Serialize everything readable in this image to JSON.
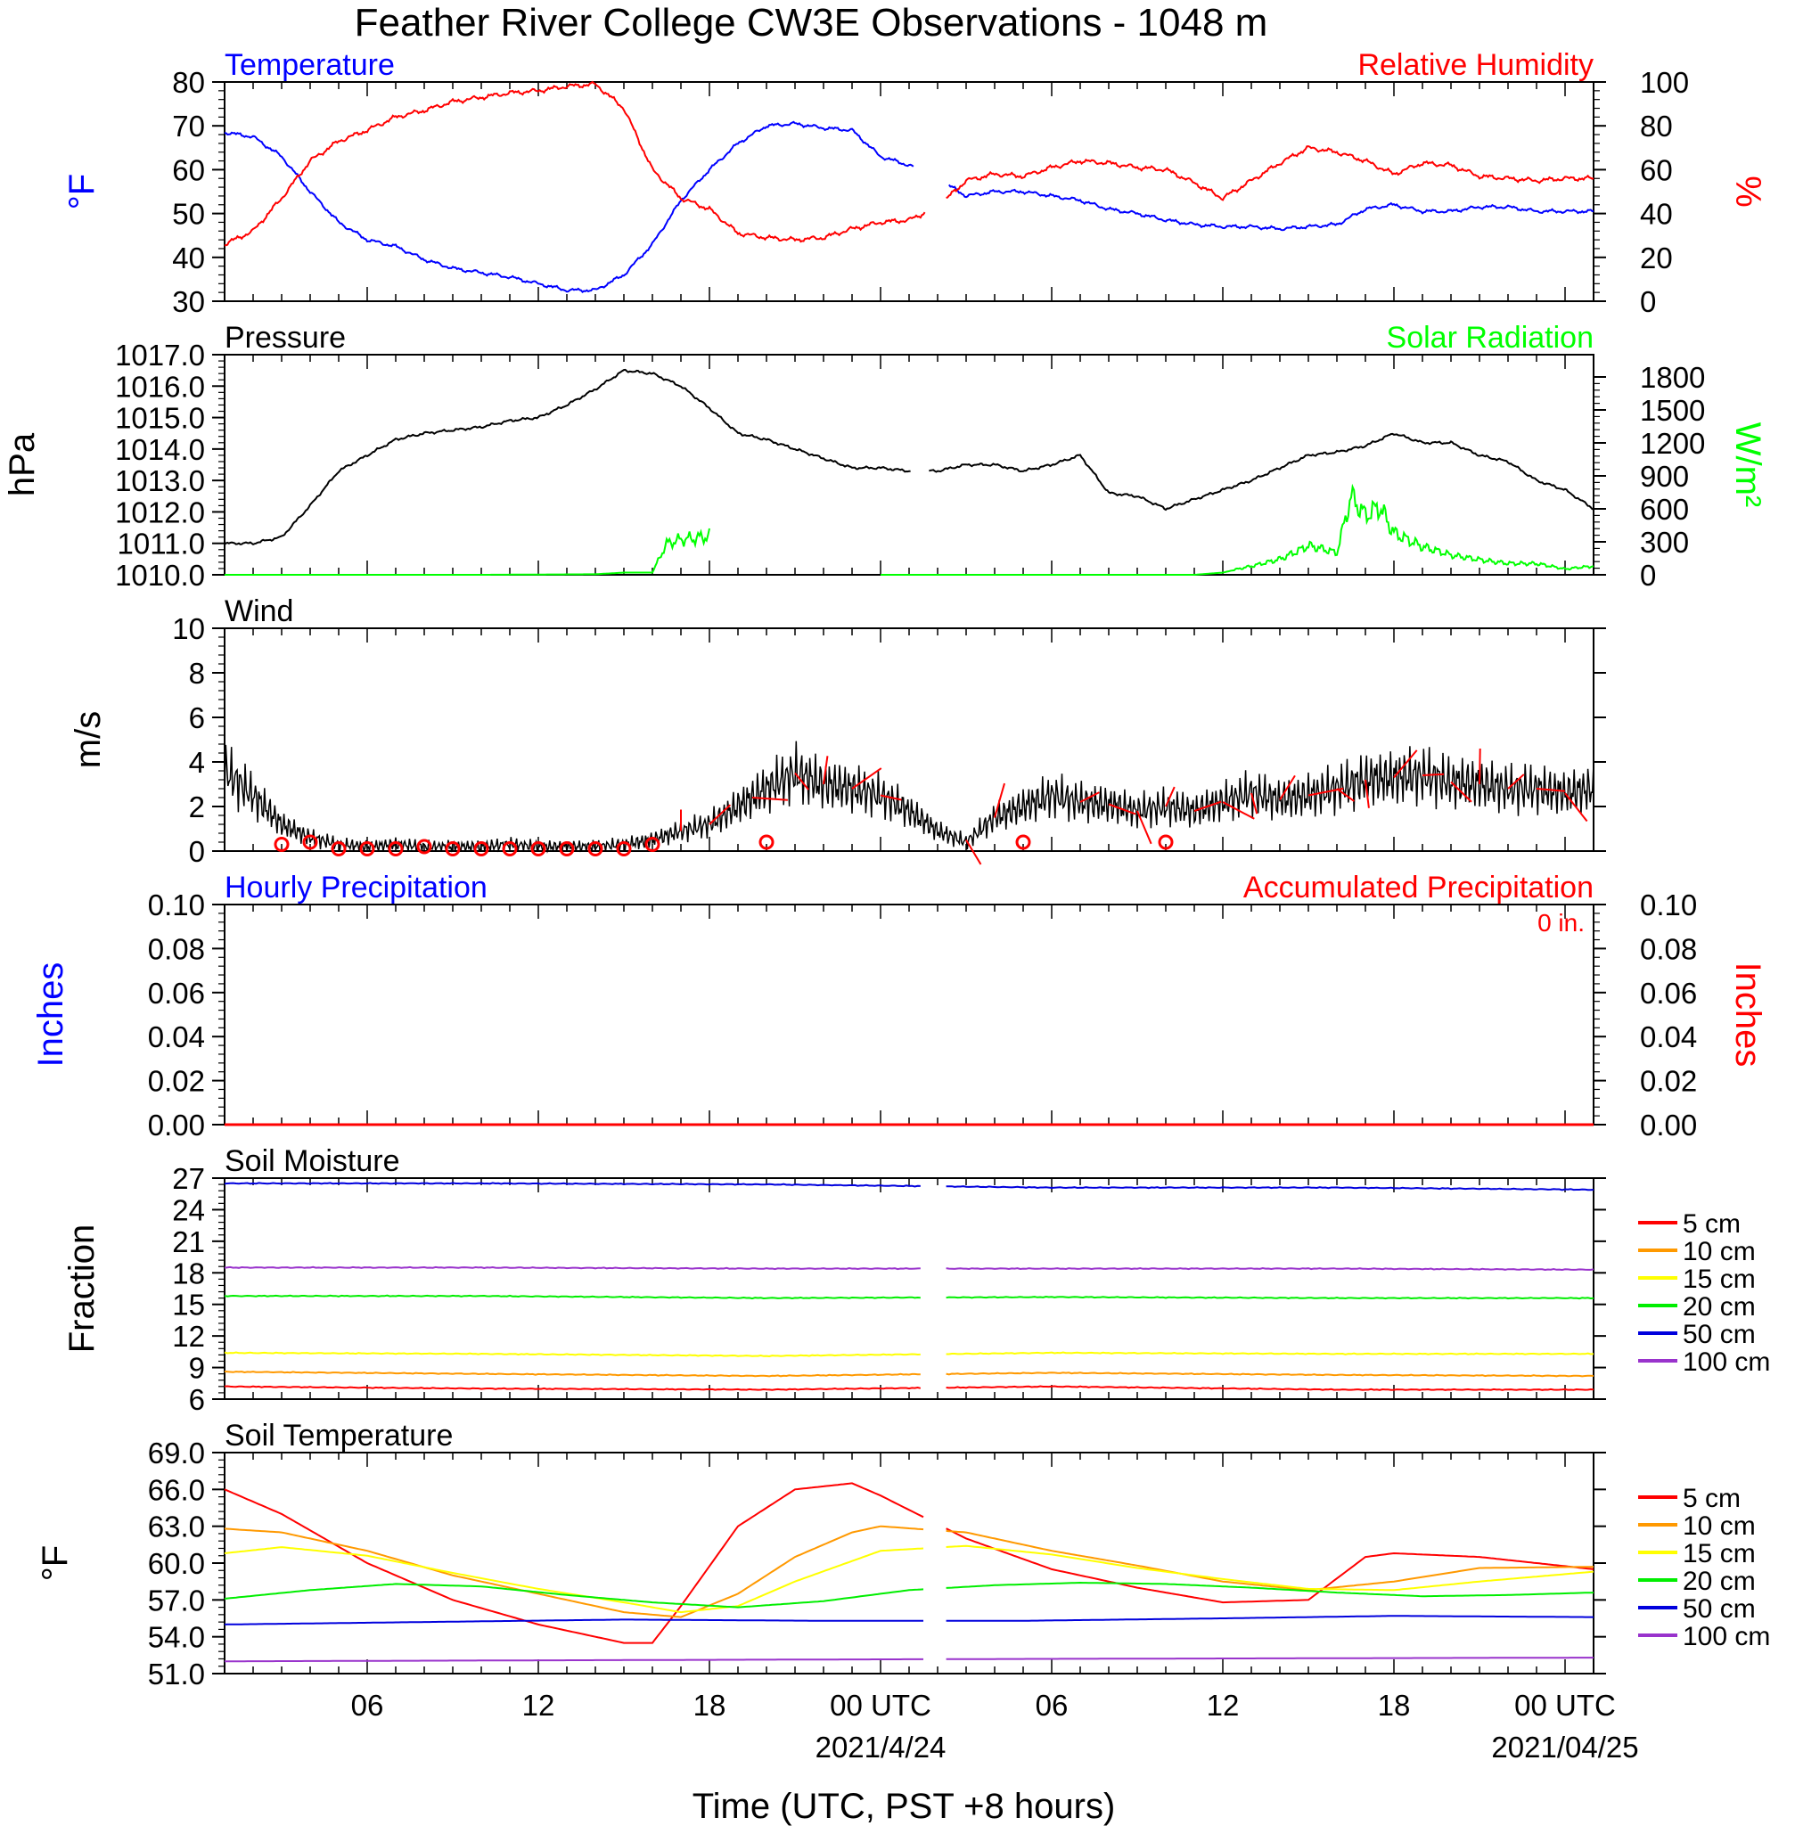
{
  "title": "Feather River College CW3E Observations - 1048 m",
  "x_axis": {
    "label": "Time (UTC, PST +8 hours)",
    "tick_labels": [
      "06",
      "12",
      "18",
      "00 UTC",
      "06",
      "12",
      "18",
      "00 UTC"
    ],
    "date_labels": [
      "2021/4/24",
      "2021/04/25"
    ],
    "hour_range": [
      1,
      49
    ]
  },
  "colors": {
    "temperature": "#0000ff",
    "humidity": "#ff0000",
    "pressure": "#000000",
    "solar": "#00ff00",
    "wind": "#000000",
    "wind_barb": "#ff0000",
    "precip_hourly": "#0000ff",
    "precip_accum": "#ff0000",
    "d5": "#ff0000",
    "d10": "#ff9900",
    "d15": "#ffff00",
    "d20": "#00ee00",
    "d50": "#0000dd",
    "d100": "#9933cc"
  },
  "panels": {
    "temperature": {
      "left_title": "Temperature",
      "right_title": "Relative Humidity",
      "left_unit": "°F",
      "right_unit": "%",
      "left_ticks": [
        "80",
        "70",
        "60",
        "50",
        "40",
        "30"
      ],
      "right_ticks": [
        "100",
        "80",
        "60",
        "40",
        "20",
        "0"
      ]
    },
    "pressure": {
      "left_title": "Pressure",
      "right_title": "Solar Radiation",
      "left_unit": "hPa",
      "right_unit": "W/m²",
      "left_ticks": [
        "1017.0",
        "1016.0",
        "1015.0",
        "1014.0",
        "1013.0",
        "1012.0",
        "1011.0",
        "1010.0"
      ],
      "right_ticks": [
        "1800",
        "1500",
        "1200",
        "900",
        "600",
        "300",
        "0"
      ]
    },
    "wind": {
      "left_title": "Wind",
      "left_unit": "m/s",
      "left_ticks": [
        "10",
        "8",
        "6",
        "4",
        "2",
        "0"
      ]
    },
    "precip": {
      "left_title": "Hourly Precipitation",
      "right_title": "Accumulated Precipitation",
      "accum_text": "0 in.",
      "left_unit": "Inches",
      "right_unit": "Inches",
      "left_ticks": [
        "0.10",
        "0.08",
        "0.06",
        "0.04",
        "0.02",
        "0.00"
      ],
      "right_ticks": [
        "0.10",
        "0.08",
        "0.06",
        "0.04",
        "0.02",
        "0.00"
      ]
    },
    "soil_moisture": {
      "left_title": "Soil Moisture",
      "left_unit": "Fraction",
      "left_ticks": [
        "27",
        "24",
        "21",
        "18",
        "15",
        "12",
        "9",
        "6"
      ]
    },
    "soil_temperature": {
      "left_title": "Soil Temperature",
      "left_unit": "°F",
      "left_ticks": [
        "69.0",
        "66.0",
        "63.0",
        "60.0",
        "57.0",
        "54.0",
        "51.0"
      ]
    }
  },
  "legend": {
    "items": [
      {
        "label": "5 cm",
        "color": "#ff0000"
      },
      {
        "label": "10 cm",
        "color": "#ff9900"
      },
      {
        "label": "15 cm",
        "color": "#ffff00"
      },
      {
        "label": "20 cm",
        "color": "#00ee00"
      },
      {
        "label": "50 cm",
        "color": "#0000dd"
      },
      {
        "label": "100 cm",
        "color": "#9933cc"
      }
    ]
  },
  "chart_data": [
    {
      "type": "line",
      "title": "Temperature / Relative Humidity",
      "x_unit": "hours since 2021-04-23 00 UTC",
      "ylim_left": [
        30,
        80
      ],
      "ylim_right": [
        0,
        100
      ],
      "series": [
        {
          "name": "Temperature",
          "axis": "left",
          "x": [
            1,
            2,
            3,
            4,
            5,
            6,
            7,
            8,
            9,
            10,
            11,
            12,
            13,
            14,
            15,
            16,
            17,
            18,
            19,
            20,
            21,
            22,
            23,
            24,
            25,
            26,
            27,
            28,
            29,
            30,
            31,
            32,
            33,
            34,
            35,
            36,
            37,
            38,
            39,
            40,
            41,
            42,
            43,
            44,
            45,
            46,
            47,
            48,
            49
          ],
          "values": [
            68.5,
            67.5,
            63,
            55,
            48,
            44,
            42.5,
            39.5,
            37.5,
            36.5,
            35.5,
            34,
            32.5,
            32.5,
            36,
            43,
            53,
            60,
            66,
            70,
            70.5,
            69.5,
            69,
            63,
            61,
            58,
            54,
            55,
            55,
            54,
            53,
            51,
            50,
            48.5,
            47.5,
            47,
            47,
            46.5,
            47,
            47.5,
            51,
            52,
            50.5,
            50.5,
            51.5,
            51.5,
            50.5,
            50.5,
            50.5
          ]
        },
        {
          "name": "Relative Humidity",
          "axis": "right",
          "x": [
            1,
            2,
            3,
            4,
            5,
            6,
            7,
            8,
            9,
            10,
            11,
            12,
            13,
            14,
            15,
            16,
            17,
            18,
            19,
            20,
            21,
            22,
            23,
            24,
            25,
            26,
            27,
            28,
            29,
            30,
            31,
            32,
            33,
            34,
            35,
            36,
            37,
            38,
            39,
            40,
            41,
            42,
            43,
            44,
            45,
            46,
            47,
            48,
            49
          ],
          "values": [
            26,
            32,
            47,
            64,
            73,
            78,
            84,
            87,
            91,
            93,
            95,
            96,
            98,
            99,
            88,
            60,
            47,
            42,
            31,
            29,
            28,
            29,
            33,
            36,
            37,
            43,
            55,
            58,
            57,
            61,
            64,
            63,
            61,
            60,
            54,
            47,
            55,
            63,
            70,
            68,
            64,
            58,
            63,
            62,
            57,
            56,
            55,
            56,
            56
          ]
        }
      ]
    },
    {
      "type": "line",
      "title": "Pressure / Solar Radiation",
      "x_unit": "hours since 2021-04-23 00 UTC",
      "ylim_left": [
        1010,
        1017
      ],
      "ylim_right": [
        0,
        2000
      ],
      "series": [
        {
          "name": "Pressure",
          "axis": "left",
          "x": [
            1,
            2,
            3,
            4,
            5,
            6,
            7,
            8,
            9,
            10,
            11,
            12,
            13,
            14,
            15,
            16,
            17,
            18,
            19,
            20,
            21,
            22,
            23,
            24,
            25,
            26,
            27,
            28,
            29,
            30,
            31,
            32,
            33,
            34,
            35,
            36,
            37,
            38,
            39,
            40,
            41,
            42,
            43,
            44,
            45,
            46,
            47,
            48,
            49
          ],
          "values": [
            1011.0,
            1011.0,
            1011.2,
            1012.2,
            1013.3,
            1013.8,
            1014.3,
            1014.5,
            1014.6,
            1014.7,
            1014.9,
            1015.0,
            1015.4,
            1015.9,
            1016.5,
            1016.4,
            1016.0,
            1015.3,
            1014.5,
            1014.3,
            1014.0,
            1013.7,
            1013.4,
            1013.4,
            1013.3,
            1013.3,
            1013.5,
            1013.5,
            1013.3,
            1013.5,
            1013.8,
            1012.6,
            1012.5,
            1012.1,
            1012.4,
            1012.7,
            1013.0,
            1013.4,
            1013.8,
            1013.9,
            1014.1,
            1014.5,
            1014.2,
            1014.2,
            1013.8,
            1013.6,
            1013.0,
            1012.7,
            1012.1
          ]
        },
        {
          "name": "Solar Radiation",
          "axis": "right",
          "x": [
            1,
            5,
            10,
            14,
            15,
            16,
            16.5,
            17,
            18,
            18.01,
            24,
            35,
            36,
            37,
            38,
            39,
            40,
            40.5,
            41,
            41.5,
            42,
            43,
            44,
            45,
            46,
            47,
            48,
            49
          ],
          "values": [
            0,
            0,
            0,
            5,
            20,
            20,
            280,
            330,
            370,
            0,
            0,
            0,
            20,
            80,
            150,
            260,
            190,
            700,
            550,
            650,
            400,
            250,
            170,
            140,
            110,
            100,
            50,
            80
          ]
        }
      ]
    },
    {
      "type": "line",
      "title": "Wind",
      "x_unit": "hours since 2021-04-23 00 UTC",
      "ylim": [
        0,
        10
      ],
      "series": [
        {
          "name": "Wind speed",
          "x": [
            1,
            2,
            3,
            4,
            5,
            6,
            7,
            8,
            9,
            10,
            11,
            12,
            13,
            14,
            15,
            16,
            17,
            18,
            19,
            20,
            21,
            22,
            23,
            24,
            25,
            26,
            27,
            28,
            29,
            30,
            31,
            32,
            33,
            34,
            35,
            36,
            37,
            38,
            39,
            40,
            41,
            42,
            43,
            44,
            45,
            46,
            47,
            48,
            49
          ],
          "values": [
            3.6,
            2.5,
            1.2,
            0.6,
            0.3,
            0.2,
            0.3,
            0.2,
            0.2,
            0.2,
            0.3,
            0.2,
            0.2,
            0.2,
            0.3,
            0.5,
            0.9,
            1.2,
            2.0,
            2.8,
            3.5,
            3.0,
            2.8,
            2.5,
            1.8,
            0.9,
            0.4,
            1.5,
            2.0,
            2.5,
            2.2,
            2.1,
            1.8,
            2.0,
            1.8,
            2.2,
            2.6,
            2.3,
            2.5,
            2.8,
            3.2,
            3.3,
            3.4,
            3.1,
            3.0,
            2.8,
            2.8,
            2.6,
            2.8
          ]
        }
      ],
      "calm_markers_hour": [
        3,
        4,
        5,
        6,
        7,
        8,
        9,
        10,
        11,
        12,
        13,
        14,
        15,
        16,
        20,
        29,
        34
      ],
      "calm_markers_speed": [
        0.3,
        0.4,
        0.1,
        0.1,
        0.1,
        0.2,
        0.1,
        0.1,
        0.1,
        0.1,
        0.1,
        0.1,
        0.1,
        0.3,
        0.4,
        0.4,
        0.4
      ]
    },
    {
      "type": "line",
      "title": "Hourly Precipitation / Accumulated Precipitation",
      "x_unit": "hours since 2021-04-23 00 UTC",
      "ylim_left": [
        0,
        0.1
      ],
      "ylim_right": [
        0,
        0.1
      ],
      "series": [
        {
          "name": "Hourly Precipitation",
          "axis": "left",
          "x": [
            1,
            49
          ],
          "values": [
            0,
            0
          ]
        },
        {
          "name": "Accumulated Precipitation",
          "axis": "right",
          "x": [
            1,
            49
          ],
          "values": [
            0,
            0
          ]
        }
      ]
    },
    {
      "type": "line",
      "title": "Soil Moisture",
      "x_unit": "hours since 2021-04-23 00 UTC",
      "ylim": [
        6,
        27
      ],
      "series": [
        {
          "name": "5 cm",
          "x": [
            1,
            10,
            20,
            30,
            40,
            49
          ],
          "values": [
            7.2,
            7.0,
            6.9,
            7.2,
            6.9,
            6.9
          ]
        },
        {
          "name": "10 cm",
          "x": [
            1,
            10,
            20,
            30,
            40,
            49
          ],
          "values": [
            8.6,
            8.4,
            8.2,
            8.5,
            8.3,
            8.2
          ]
        },
        {
          "name": "15 cm",
          "x": [
            1,
            10,
            20,
            30,
            40,
            49
          ],
          "values": [
            10.4,
            10.3,
            10.1,
            10.4,
            10.3,
            10.3
          ]
        },
        {
          "name": "20 cm",
          "x": [
            1,
            10,
            20,
            30,
            40,
            49
          ],
          "values": [
            15.8,
            15.8,
            15.6,
            15.7,
            15.6,
            15.6
          ]
        },
        {
          "name": "50 cm",
          "x": [
            1,
            10,
            20,
            30,
            40,
            49
          ],
          "values": [
            26.5,
            26.5,
            26.4,
            26.1,
            26.1,
            25.9
          ]
        },
        {
          "name": "100 cm",
          "x": [
            1,
            10,
            20,
            30,
            40,
            49
          ],
          "values": [
            18.5,
            18.5,
            18.4,
            18.4,
            18.4,
            18.3
          ]
        }
      ]
    },
    {
      "type": "line",
      "title": "Soil Temperature",
      "x_unit": "hours since 2021-04-23 00 UTC",
      "ylim": [
        51,
        69
      ],
      "series": [
        {
          "name": "5 cm",
          "x": [
            1,
            3,
            6,
            9,
            12,
            15,
            16,
            17,
            19,
            21,
            23,
            24,
            27,
            30,
            33,
            36,
            39,
            41,
            42,
            45,
            49
          ],
          "values": [
            66.0,
            64.0,
            60.0,
            57.0,
            55.0,
            53.5,
            53.5,
            56.5,
            63.0,
            66.0,
            66.5,
            65.5,
            62.0,
            59.5,
            58.0,
            56.8,
            57.0,
            60.5,
            60.8,
            60.5,
            59.5
          ]
        },
        {
          "name": "10 cm",
          "x": [
            1,
            3,
            6,
            9,
            12,
            15,
            17,
            19,
            21,
            23,
            24,
            27,
            30,
            33,
            36,
            39,
            42,
            45,
            49
          ],
          "values": [
            62.8,
            62.5,
            61.0,
            59.0,
            57.5,
            56.0,
            55.6,
            57.5,
            60.5,
            62.5,
            63.0,
            62.5,
            61.0,
            59.8,
            58.5,
            57.8,
            58.5,
            59.6,
            59.7
          ]
        },
        {
          "name": "15 cm",
          "x": [
            1,
            3,
            6,
            9,
            12,
            15,
            17,
            19,
            21,
            24,
            27,
            30,
            33,
            36,
            39,
            42,
            45,
            49
          ],
          "values": [
            60.8,
            61.3,
            60.6,
            59.2,
            57.9,
            56.8,
            56.0,
            56.5,
            58.5,
            61.0,
            61.4,
            60.7,
            59.6,
            58.7,
            57.9,
            57.8,
            58.5,
            59.3
          ]
        },
        {
          "name": "20 cm",
          "x": [
            1,
            4,
            7,
            10,
            13,
            16,
            19,
            22,
            25,
            28,
            31,
            34,
            37,
            40,
            43,
            46,
            49
          ],
          "values": [
            57.1,
            57.8,
            58.3,
            58.1,
            57.4,
            56.8,
            56.4,
            56.9,
            57.8,
            58.2,
            58.4,
            58.3,
            58.0,
            57.6,
            57.3,
            57.4,
            57.6
          ]
        },
        {
          "name": "50 cm",
          "x": [
            1,
            8,
            15,
            22,
            29,
            36,
            42,
            49
          ],
          "values": [
            55.0,
            55.2,
            55.4,
            55.3,
            55.3,
            55.5,
            55.7,
            55.6
          ]
        },
        {
          "name": "100 cm",
          "x": [
            1,
            15,
            30,
            49
          ],
          "values": [
            52.0,
            52.1,
            52.2,
            52.3
          ]
        }
      ]
    }
  ]
}
